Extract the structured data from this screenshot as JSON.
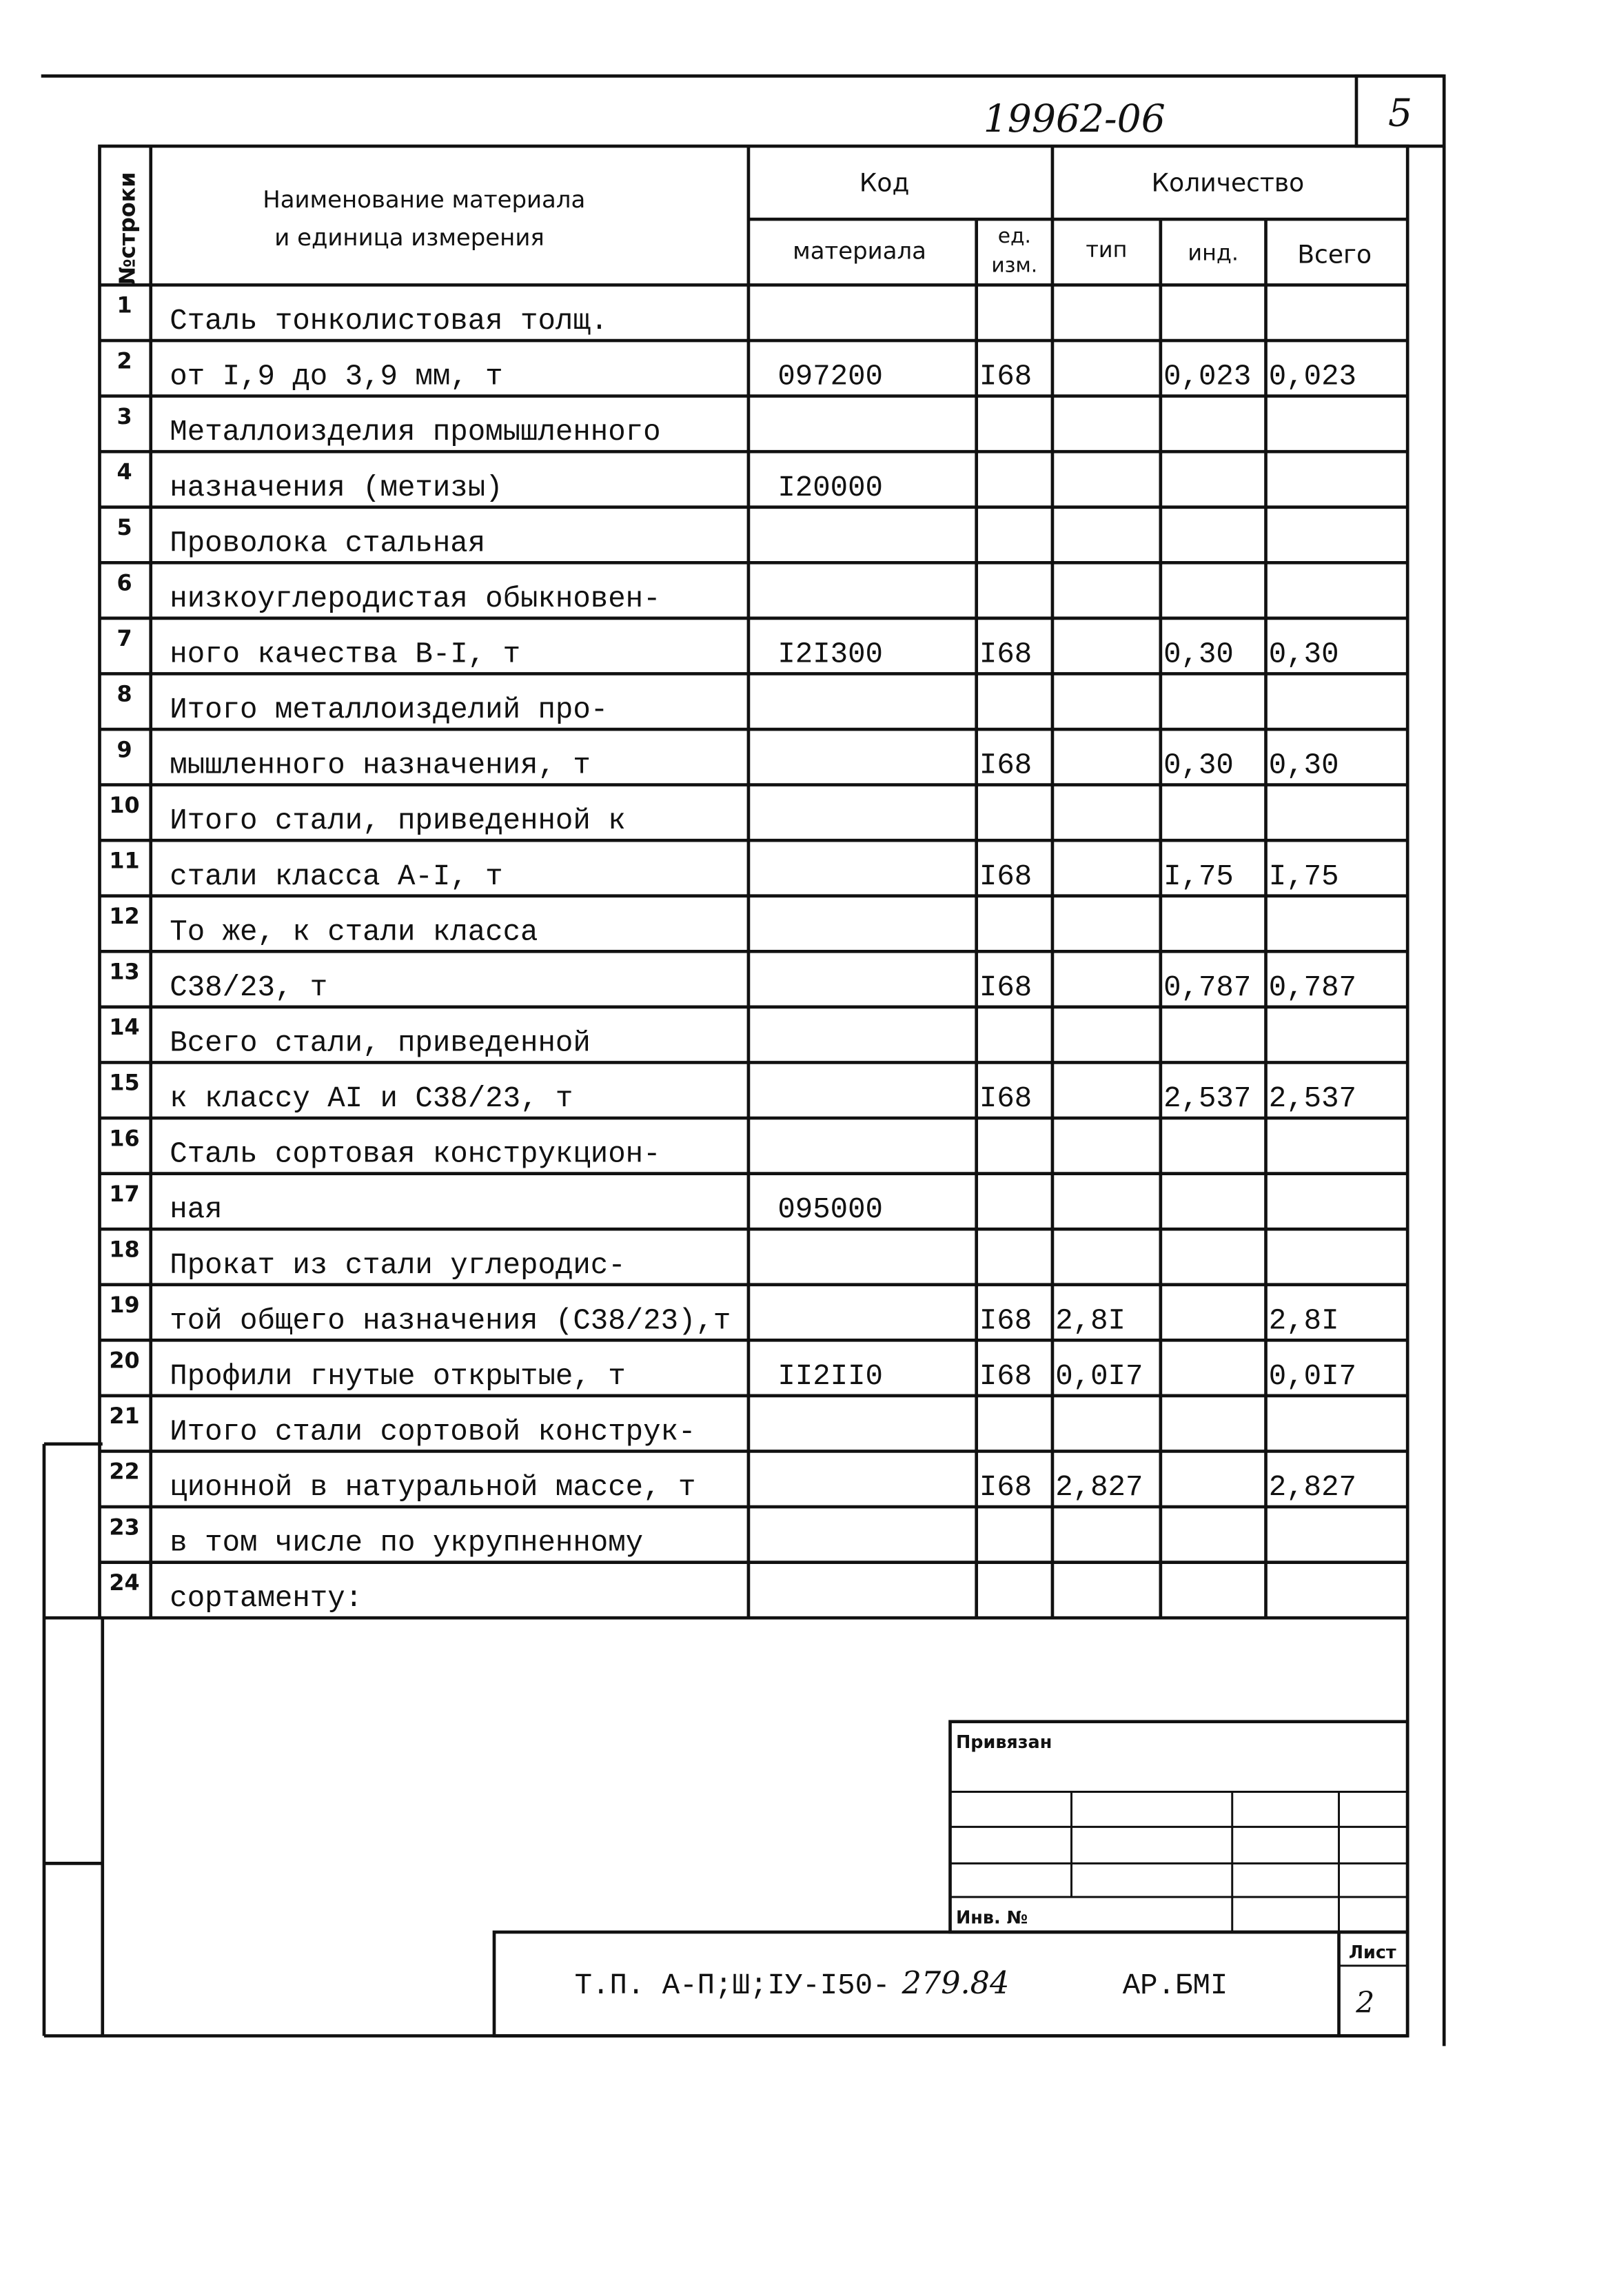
{
  "document_number": "19962-06",
  "page_box_number": "5",
  "header": {
    "row_no": "№строки",
    "name_line1": "Наименование материала",
    "name_line2": "и единица измерения",
    "code": "Код",
    "code_material": "материала",
    "code_unit_line1": "ед.",
    "code_unit_line2": "изм.",
    "quantity": "Количество",
    "qty_type": "тип",
    "qty_ind": "инд.",
    "qty_total": "Всего"
  },
  "rows": [
    {
      "n": "1",
      "name": "Сталь тонколистовая толщ.",
      "code": "",
      "unit": "",
      "type": "",
      "ind": "",
      "total": ""
    },
    {
      "n": "2",
      "name": "от I,9 до 3,9 мм,  т",
      "code": "097200",
      "unit": "I68",
      "type": "",
      "ind": "0,023",
      "total": "0,023"
    },
    {
      "n": "3",
      "name": "Металлоизделия промышленного",
      "code": "",
      "unit": "",
      "type": "",
      "ind": "",
      "total": ""
    },
    {
      "n": "4",
      "name": "назначения (метизы)",
      "code": "I20000",
      "unit": "",
      "type": "",
      "ind": "",
      "total": ""
    },
    {
      "n": "5",
      "name": "Проволока стальная",
      "code": "",
      "unit": "",
      "type": "",
      "ind": "",
      "total": ""
    },
    {
      "n": "6",
      "name": "низкоуглеродистая обыкновен-",
      "code": "",
      "unit": "",
      "type": "",
      "ind": "",
      "total": ""
    },
    {
      "n": "7",
      "name": "ного качества В-I, т",
      "code": "I2I300",
      "unit": "I68",
      "type": "",
      "ind": "0,30",
      "total": "0,30"
    },
    {
      "n": "8",
      "name": "Итого металлоизделий про-",
      "code": "",
      "unit": "",
      "type": "",
      "ind": "",
      "total": ""
    },
    {
      "n": "9",
      "name": "мышленного назначения, т",
      "code": "",
      "unit": "I68",
      "type": "",
      "ind": "0,30",
      "total": "0,30"
    },
    {
      "n": "10",
      "name": "Итого стали, приведенной к",
      "code": "",
      "unit": "",
      "type": "",
      "ind": "",
      "total": ""
    },
    {
      "n": "11",
      "name": "стали класса А-I,  т",
      "code": "",
      "unit": "I68",
      "type": "",
      "ind": "I,75",
      "total": "I,75"
    },
    {
      "n": "12",
      "name": "То же, к стали класса",
      "code": "",
      "unit": "",
      "type": "",
      "ind": "",
      "total": ""
    },
    {
      "n": "13",
      "name": "С38/23, т",
      "code": "",
      "unit": "I68",
      "type": "",
      "ind": "0,787",
      "total": "0,787"
    },
    {
      "n": "14",
      "name": "Всего стали, приведенной",
      "code": "",
      "unit": "",
      "type": "",
      "ind": "",
      "total": ""
    },
    {
      "n": "15",
      "name": "к классу АI и С38/23, т",
      "code": "",
      "unit": "I68",
      "type": "",
      "ind": "2,537",
      "total": "2,537"
    },
    {
      "n": "16",
      "name": "Сталь сортовая конструкцион-",
      "code": "",
      "unit": "",
      "type": "",
      "ind": "",
      "total": ""
    },
    {
      "n": "17",
      "name": "ная",
      "code": "095000",
      "unit": "",
      "type": "",
      "ind": "",
      "total": ""
    },
    {
      "n": "18",
      "name": "Прокат из стали углеродис-",
      "code": "",
      "unit": "",
      "type": "",
      "ind": "",
      "total": ""
    },
    {
      "n": "19",
      "name": "той общего назначения (С38/23),т",
      "code": "",
      "unit": "I68",
      "type": "2,8I",
      "ind": "",
      "total": "2,8I"
    },
    {
      "n": "20",
      "name": "Профили гнутые открытые, т",
      "code": "II2II0",
      "unit": "I68",
      "type": "0,0I7",
      "ind": "",
      "total": "0,0I7"
    },
    {
      "n": "21",
      "name": "Итого стали сортовой конструк-",
      "code": "",
      "unit": "",
      "type": "",
      "ind": "",
      "total": ""
    },
    {
      "n": "22",
      "name": "ционной в натуральной массе, т",
      "code": "",
      "unit": "I68",
      "type": "2,827",
      "ind": "",
      "total": "2,827"
    },
    {
      "n": "23",
      "name": "в том числе по укрупненному",
      "code": "",
      "unit": "",
      "type": "",
      "ind": "",
      "total": ""
    },
    {
      "n": "24",
      "name": "сортаменту:",
      "code": "",
      "unit": "",
      "type": "",
      "ind": "",
      "total": ""
    }
  ],
  "stamp": {
    "attached_label": "Привязан",
    "inv_label": "Инв. №",
    "project_code_typed": "Т.П. А-П;Ш;IУ-I50-",
    "project_code_handwritten": "279.84",
    "album": "АР.БМI",
    "sheet_label": "Лист",
    "sheet_number": "2"
  }
}
